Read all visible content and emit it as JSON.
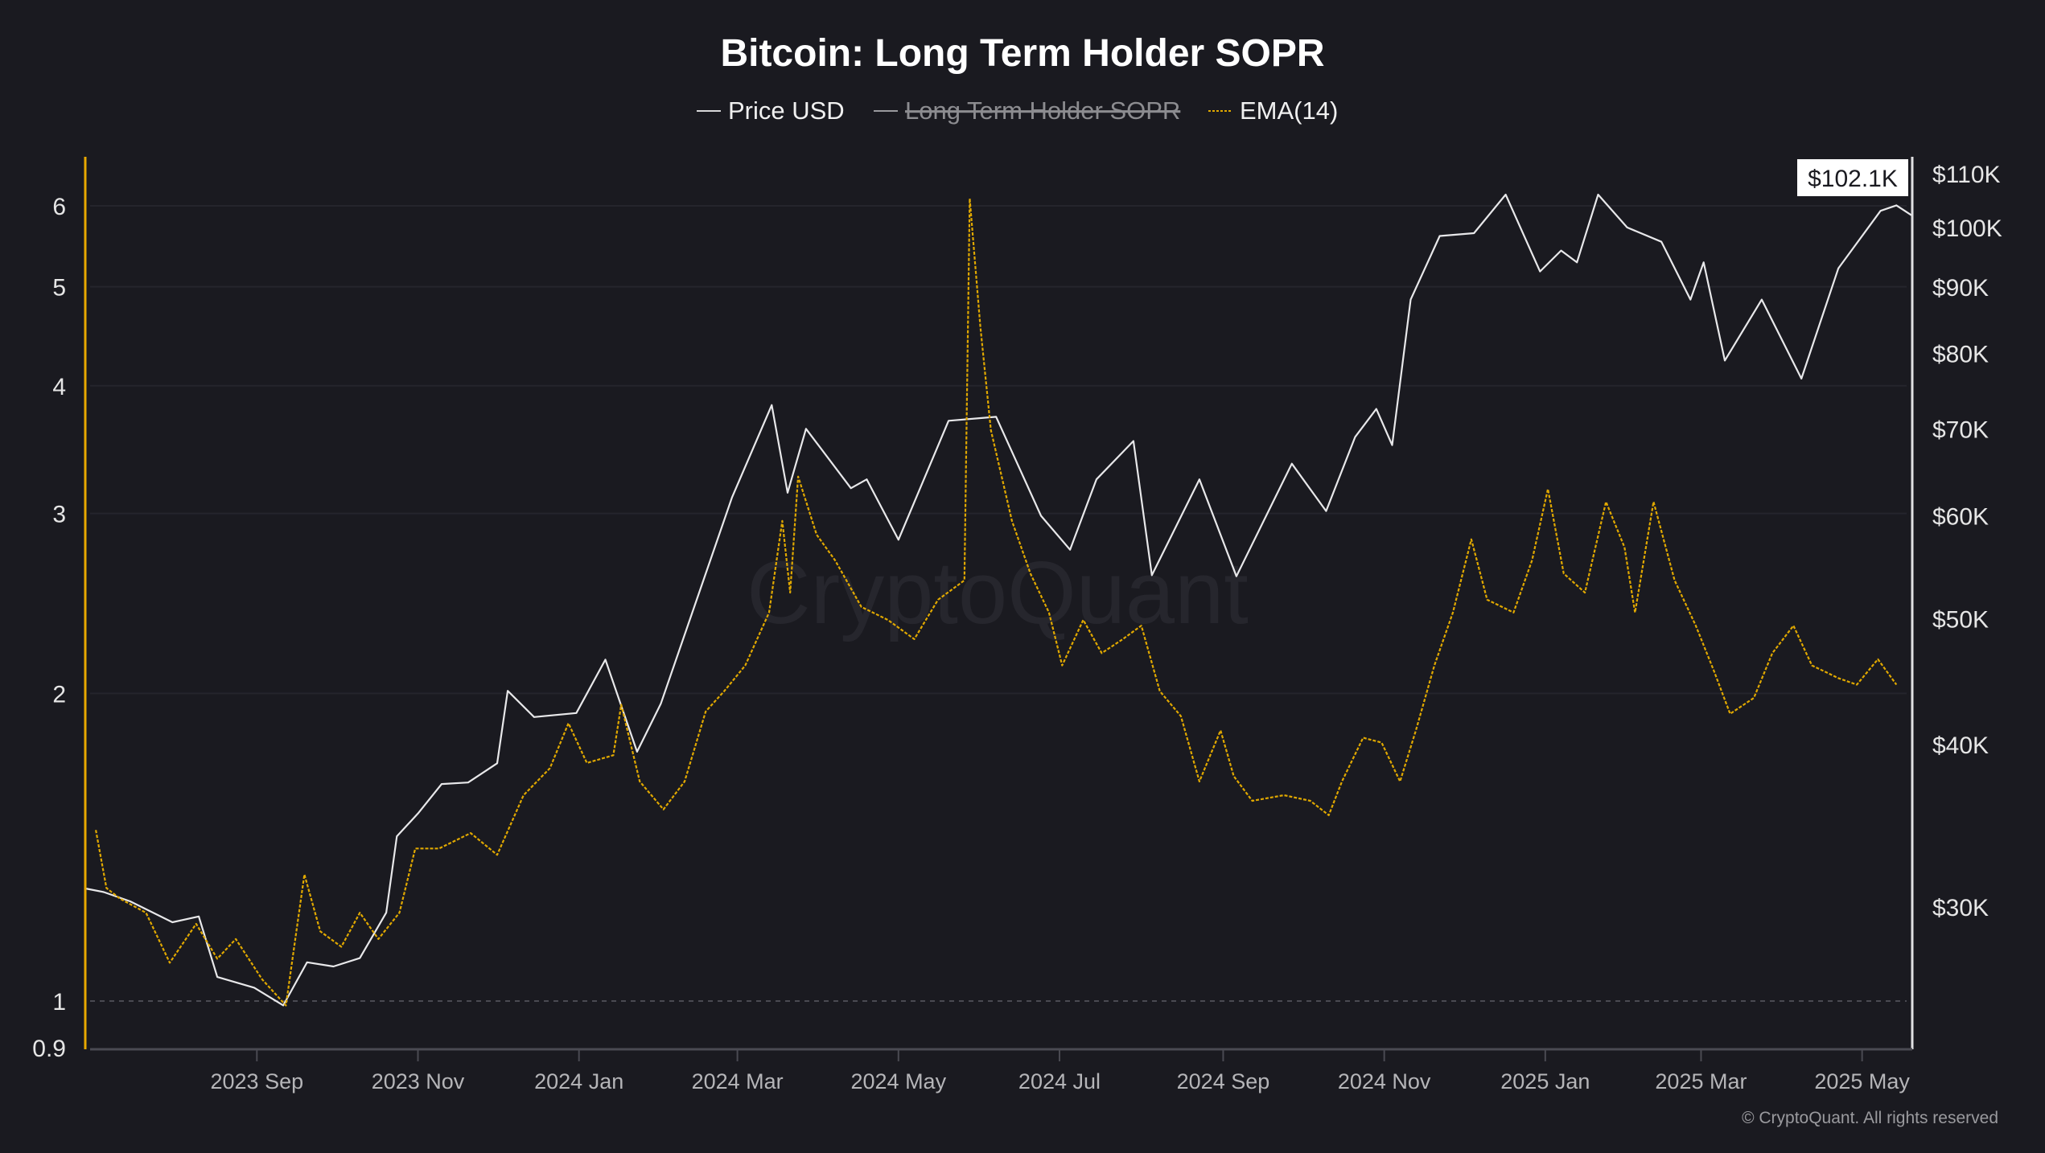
{
  "chart_data": {
    "type": "line",
    "title": "Bitcoin: Long Term Holder SOPR",
    "legend": [
      {
        "label": "Price USD",
        "color": "#e8e8ea",
        "hidden": false
      },
      {
        "label": "Long Term Holder SOPR",
        "color": "#9a9a9e",
        "hidden": true
      },
      {
        "label": "EMA(14)",
        "color": "#e0a800",
        "hidden": false
      }
    ],
    "legend_position": "top-center",
    "x_range": [
      "2023-06-28",
      "2025-05-20"
    ],
    "x_ticks": [
      {
        "date": "2023-09-01",
        "label": "2023 Sep"
      },
      {
        "date": "2023-11-01",
        "label": "2023 Nov"
      },
      {
        "date": "2024-01-01",
        "label": "2024 Jan"
      },
      {
        "date": "2024-03-01",
        "label": "2024 Mar"
      },
      {
        "date": "2024-05-01",
        "label": "2024 May"
      },
      {
        "date": "2024-07-01",
        "label": "2024 Jul"
      },
      {
        "date": "2024-09-01",
        "label": "2024 Sep"
      },
      {
        "date": "2024-11-01",
        "label": "2024 Nov"
      },
      {
        "date": "2025-01-01",
        "label": "2025 Jan"
      },
      {
        "date": "2025-03-01",
        "label": "2025 Mar"
      },
      {
        "date": "2025-05-01",
        "label": "2025 May"
      }
    ],
    "left_axis": {
      "scale": "log",
      "range": [
        0.9,
        6.5
      ],
      "axis_color": "#e8a800",
      "ticks": [
        {
          "v": 6,
          "label": "6"
        },
        {
          "v": 5,
          "label": "5"
        },
        {
          "v": 4,
          "label": "4"
        },
        {
          "v": 3,
          "label": "3"
        },
        {
          "v": 2,
          "label": "2"
        },
        {
          "v": 1,
          "label": "1"
        },
        {
          "v": 0.9,
          "label": "0.9"
        }
      ],
      "reference_line": 1
    },
    "right_axis": {
      "scale": "log",
      "range": [
        23500,
        118000
      ],
      "ticks": [
        {
          "v": 110000,
          "label": "$110K"
        },
        {
          "v": 100000,
          "label": "$100K"
        },
        {
          "v": 90000,
          "label": "$90K"
        },
        {
          "v": 80000,
          "label": "$80K"
        },
        {
          "v": 70000,
          "label": "$70K"
        },
        {
          "v": 60000,
          "label": "$60K"
        },
        {
          "v": 50000,
          "label": "$50K"
        },
        {
          "v": 40000,
          "label": "$40K"
        },
        {
          "v": 30000,
          "label": "$30K"
        }
      ],
      "current_label": "$102.1K",
      "current_value": 102100
    },
    "grid": true,
    "series": [
      {
        "name": "Price USD",
        "axis": "right",
        "points": [
          [
            "2023-06-28",
            31000
          ],
          [
            "2023-07-05",
            30800
          ],
          [
            "2023-07-15",
            30300
          ],
          [
            "2023-07-31",
            29200
          ],
          [
            "2023-08-10",
            29500
          ],
          [
            "2023-08-17",
            26500
          ],
          [
            "2023-08-31",
            26000
          ],
          [
            "2023-09-11",
            25200
          ],
          [
            "2023-09-20",
            27200
          ],
          [
            "2023-09-30",
            27000
          ],
          [
            "2023-10-10",
            27400
          ],
          [
            "2023-10-20",
            29700
          ],
          [
            "2023-10-24",
            34000
          ],
          [
            "2023-11-01",
            35400
          ],
          [
            "2023-11-10",
            37300
          ],
          [
            "2023-11-20",
            37400
          ],
          [
            "2023-12-01",
            38700
          ],
          [
            "2023-12-05",
            44000
          ],
          [
            "2023-12-15",
            42000
          ],
          [
            "2023-12-31",
            42300
          ],
          [
            "2024-01-11",
            46500
          ],
          [
            "2024-01-23",
            39500
          ],
          [
            "2024-02-01",
            43000
          ],
          [
            "2024-02-15",
            52000
          ],
          [
            "2024-02-28",
            62000
          ],
          [
            "2024-03-14",
            73000
          ],
          [
            "2024-03-20",
            62500
          ],
          [
            "2024-03-27",
            70000
          ],
          [
            "2024-04-13",
            63000
          ],
          [
            "2024-04-19",
            64000
          ],
          [
            "2024-05-01",
            57500
          ],
          [
            "2024-05-20",
            71000
          ],
          [
            "2024-06-07",
            71500
          ],
          [
            "2024-06-24",
            60000
          ],
          [
            "2024-07-05",
            56500
          ],
          [
            "2024-07-15",
            64000
          ],
          [
            "2024-07-29",
            68500
          ],
          [
            "2024-08-05",
            54000
          ],
          [
            "2024-08-23",
            64000
          ],
          [
            "2024-09-06",
            53900
          ],
          [
            "2024-09-27",
            65800
          ],
          [
            "2024-10-10",
            60500
          ],
          [
            "2024-10-21",
            69000
          ],
          [
            "2024-10-29",
            72500
          ],
          [
            "2024-11-04",
            68000
          ],
          [
            "2024-11-11",
            88000
          ],
          [
            "2024-11-22",
            98500
          ],
          [
            "2024-12-05",
            99000
          ],
          [
            "2024-12-17",
            106000
          ],
          [
            "2024-12-30",
            92500
          ],
          [
            "2025-01-07",
            96000
          ],
          [
            "2025-01-13",
            94000
          ],
          [
            "2025-01-21",
            106000
          ],
          [
            "2025-02-01",
            100000
          ],
          [
            "2025-02-14",
            97500
          ],
          [
            "2025-02-25",
            88000
          ],
          [
            "2025-03-02",
            94000
          ],
          [
            "2025-03-10",
            79000
          ],
          [
            "2025-03-24",
            88000
          ],
          [
            "2025-04-08",
            76500
          ],
          [
            "2025-04-22",
            93000
          ],
          [
            "2025-05-08",
            103000
          ],
          [
            "2025-05-14",
            104000
          ],
          [
            "2025-05-20",
            102100
          ]
        ]
      },
      {
        "name": "EMA(14)",
        "axis": "left",
        "points": [
          [
            "2023-07-02",
            1.47
          ],
          [
            "2023-07-06",
            1.29
          ],
          [
            "2023-07-11",
            1.26
          ],
          [
            "2023-07-21",
            1.22
          ],
          [
            "2023-07-30",
            1.09
          ],
          [
            "2023-08-09",
            1.19
          ],
          [
            "2023-08-17",
            1.1
          ],
          [
            "2023-08-24",
            1.15
          ],
          [
            "2023-09-03",
            1.05
          ],
          [
            "2023-09-12",
            0.99
          ],
          [
            "2023-09-19",
            1.33
          ],
          [
            "2023-09-25",
            1.17
          ],
          [
            "2023-10-03",
            1.13
          ],
          [
            "2023-10-10",
            1.22
          ],
          [
            "2023-10-17",
            1.15
          ],
          [
            "2023-10-25",
            1.22
          ],
          [
            "2023-10-31",
            1.41
          ],
          [
            "2023-11-09",
            1.41
          ],
          [
            "2023-11-21",
            1.46
          ],
          [
            "2023-12-01",
            1.39
          ],
          [
            "2023-12-11",
            1.59
          ],
          [
            "2023-12-21",
            1.69
          ],
          [
            "2023-12-28",
            1.87
          ],
          [
            "2024-01-04",
            1.71
          ],
          [
            "2024-01-14",
            1.74
          ],
          [
            "2024-01-17",
            1.95
          ],
          [
            "2024-01-24",
            1.64
          ],
          [
            "2024-02-02",
            1.54
          ],
          [
            "2024-02-10",
            1.64
          ],
          [
            "2024-02-18",
            1.92
          ],
          [
            "2024-02-25",
            2.01
          ],
          [
            "2024-03-04",
            2.13
          ],
          [
            "2024-03-13",
            2.4
          ],
          [
            "2024-03-18",
            2.95
          ],
          [
            "2024-03-21",
            2.51
          ],
          [
            "2024-03-24",
            3.26
          ],
          [
            "2024-03-31",
            2.86
          ],
          [
            "2024-04-07",
            2.7
          ],
          [
            "2024-04-17",
            2.43
          ],
          [
            "2024-04-27",
            2.36
          ],
          [
            "2024-05-07",
            2.26
          ],
          [
            "2024-05-16",
            2.47
          ],
          [
            "2024-05-26",
            2.58
          ],
          [
            "2024-05-28",
            6.1
          ],
          [
            "2024-06-01",
            4.58
          ],
          [
            "2024-06-05",
            3.62
          ],
          [
            "2024-06-13",
            2.95
          ],
          [
            "2024-06-20",
            2.62
          ],
          [
            "2024-06-27",
            2.4
          ],
          [
            "2024-07-02",
            2.13
          ],
          [
            "2024-07-10",
            2.36
          ],
          [
            "2024-07-17",
            2.19
          ],
          [
            "2024-07-25",
            2.26
          ],
          [
            "2024-08-01",
            2.33
          ],
          [
            "2024-08-08",
            2.01
          ],
          [
            "2024-08-16",
            1.9
          ],
          [
            "2024-08-23",
            1.64
          ],
          [
            "2024-08-31",
            1.84
          ],
          [
            "2024-09-05",
            1.66
          ],
          [
            "2024-09-12",
            1.57
          ],
          [
            "2024-09-24",
            1.59
          ],
          [
            "2024-10-04",
            1.57
          ],
          [
            "2024-10-11",
            1.52
          ],
          [
            "2024-10-16",
            1.64
          ],
          [
            "2024-10-24",
            1.81
          ],
          [
            "2024-10-31",
            1.79
          ],
          [
            "2024-11-07",
            1.64
          ],
          [
            "2024-11-13",
            1.84
          ],
          [
            "2024-11-20",
            2.13
          ],
          [
            "2024-11-27",
            2.4
          ],
          [
            "2024-12-04",
            2.83
          ],
          [
            "2024-12-10",
            2.47
          ],
          [
            "2024-12-20",
            2.4
          ],
          [
            "2024-12-27",
            2.7
          ],
          [
            "2025-01-02",
            3.17
          ],
          [
            "2025-01-08",
            2.62
          ],
          [
            "2025-01-16",
            2.51
          ],
          [
            "2025-01-24",
            3.08
          ],
          [
            "2025-01-31",
            2.78
          ],
          [
            "2025-02-04",
            2.4
          ],
          [
            "2025-02-11",
            3.08
          ],
          [
            "2025-02-19",
            2.58
          ],
          [
            "2025-02-27",
            2.33
          ],
          [
            "2025-03-06",
            2.1
          ],
          [
            "2025-03-12",
            1.91
          ],
          [
            "2025-03-21",
            1.98
          ],
          [
            "2025-03-28",
            2.19
          ],
          [
            "2025-04-05",
            2.33
          ],
          [
            "2025-04-12",
            2.13
          ],
          [
            "2025-04-22",
            2.07
          ],
          [
            "2025-04-29",
            2.04
          ],
          [
            "2025-05-07",
            2.16
          ],
          [
            "2025-05-14",
            2.04
          ]
        ]
      }
    ]
  },
  "watermark": "CryptoQuant",
  "copyright": "© CryptoQuant. All rights reserved"
}
